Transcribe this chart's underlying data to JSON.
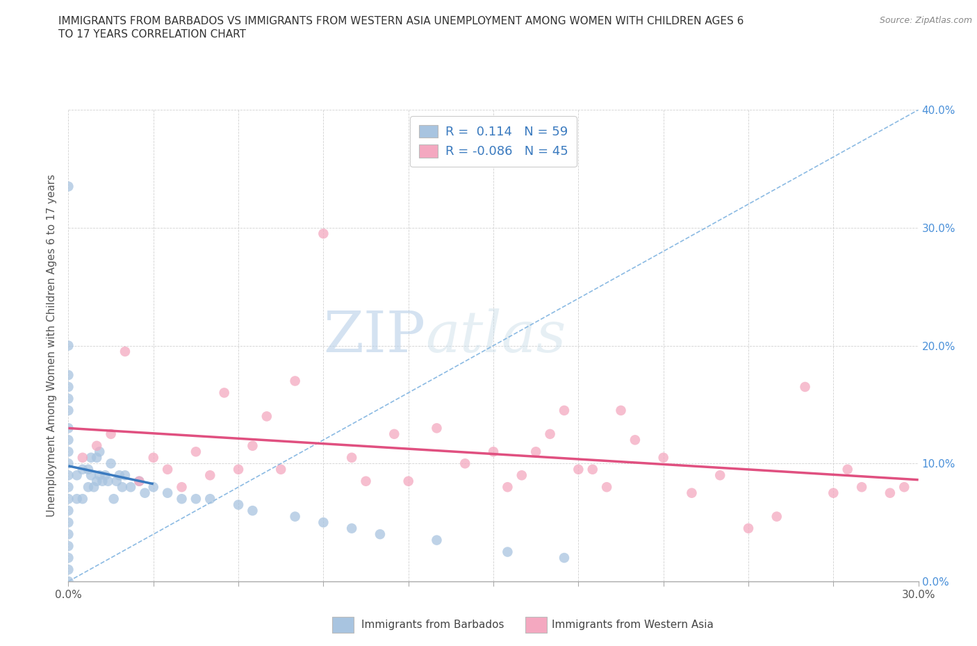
{
  "title_line1": "IMMIGRANTS FROM BARBADOS VS IMMIGRANTS FROM WESTERN ASIA UNEMPLOYMENT AMONG WOMEN WITH CHILDREN AGES 6",
  "title_line2": "TO 17 YEARS CORRELATION CHART",
  "source": "Source: ZipAtlas.com",
  "ylabel": "Unemployment Among Women with Children Ages 6 to 17 years",
  "xlim": [
    0.0,
    0.3
  ],
  "ylim": [
    0.0,
    0.4
  ],
  "R_barbados": 0.114,
  "N_barbados": 59,
  "R_western_asia": -0.086,
  "N_western_asia": 45,
  "color_barbados": "#a8c4e0",
  "color_western_asia": "#f4a8c0",
  "trendline_barbados_color": "#3a7abf",
  "trendline_western_asia_color": "#e05080",
  "trendline_dashed_color": "#7fb3e0",
  "watermark_zip": "ZIP",
  "watermark_atlas": "atlas",
  "legend_label_barbados": "Immigrants from Barbados",
  "legend_label_western_asia": "Immigrants from Western Asia",
  "barbados_x": [
    0.0,
    0.0,
    0.0,
    0.0,
    0.0,
    0.0,
    0.0,
    0.0,
    0.0,
    0.0,
    0.0,
    0.0,
    0.0,
    0.0,
    0.0,
    0.0,
    0.0,
    0.0,
    0.0,
    0.0,
    0.003,
    0.003,
    0.005,
    0.005,
    0.007,
    0.007,
    0.008,
    0.008,
    0.009,
    0.01,
    0.01,
    0.011,
    0.011,
    0.012,
    0.013,
    0.014,
    0.015,
    0.016,
    0.017,
    0.018,
    0.019,
    0.02,
    0.022,
    0.025,
    0.027,
    0.03,
    0.035,
    0.04,
    0.045,
    0.05,
    0.06,
    0.065,
    0.08,
    0.09,
    0.1,
    0.11,
    0.13,
    0.155,
    0.175
  ],
  "barbados_y": [
    0.0,
    0.01,
    0.02,
    0.03,
    0.04,
    0.05,
    0.06,
    0.07,
    0.08,
    0.09,
    0.1,
    0.11,
    0.12,
    0.13,
    0.145,
    0.155,
    0.165,
    0.175,
    0.2,
    0.335,
    0.07,
    0.09,
    0.07,
    0.095,
    0.08,
    0.095,
    0.09,
    0.105,
    0.08,
    0.085,
    0.105,
    0.09,
    0.11,
    0.085,
    0.09,
    0.085,
    0.1,
    0.07,
    0.085,
    0.09,
    0.08,
    0.09,
    0.08,
    0.085,
    0.075,
    0.08,
    0.075,
    0.07,
    0.07,
    0.07,
    0.065,
    0.06,
    0.055,
    0.05,
    0.045,
    0.04,
    0.035,
    0.025,
    0.02
  ],
  "western_asia_x": [
    0.005,
    0.01,
    0.015,
    0.02,
    0.025,
    0.03,
    0.035,
    0.04,
    0.045,
    0.05,
    0.055,
    0.06,
    0.065,
    0.07,
    0.075,
    0.08,
    0.09,
    0.1,
    0.105,
    0.115,
    0.12,
    0.13,
    0.14,
    0.15,
    0.155,
    0.16,
    0.165,
    0.17,
    0.175,
    0.18,
    0.185,
    0.19,
    0.195,
    0.2,
    0.21,
    0.22,
    0.23,
    0.24,
    0.25,
    0.26,
    0.27,
    0.275,
    0.28,
    0.29,
    0.295
  ],
  "western_asia_y": [
    0.105,
    0.115,
    0.125,
    0.195,
    0.085,
    0.105,
    0.095,
    0.08,
    0.11,
    0.09,
    0.16,
    0.095,
    0.115,
    0.14,
    0.095,
    0.17,
    0.295,
    0.105,
    0.085,
    0.125,
    0.085,
    0.13,
    0.1,
    0.11,
    0.08,
    0.09,
    0.11,
    0.125,
    0.145,
    0.095,
    0.095,
    0.08,
    0.145,
    0.12,
    0.105,
    0.075,
    0.09,
    0.045,
    0.055,
    0.165,
    0.075,
    0.095,
    0.08,
    0.075,
    0.08
  ]
}
